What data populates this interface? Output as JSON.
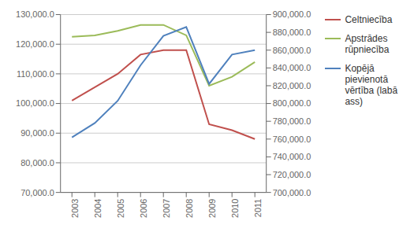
{
  "chart_data": {
    "type": "line",
    "x": [
      2003,
      2004,
      2005,
      2006,
      2007,
      2008,
      2009,
      2010,
      2011
    ],
    "xlim": [
      2002.5,
      2011.5
    ],
    "xticks": [
      2003,
      2004,
      2005,
      2006,
      2007,
      2008,
      2009,
      2010,
      2011
    ],
    "ylim": [
      70000,
      130000
    ],
    "yticks": [
      {
        "value": 70000,
        "label": "70,000.0"
      },
      {
        "value": 80000,
        "label": "80,000.0"
      },
      {
        "value": 90000,
        "label": "90,000.0"
      },
      {
        "value": 100000,
        "label": "100,000.0"
      },
      {
        "value": 110000,
        "label": "110,000.0"
      },
      {
        "value": 120000,
        "label": "120,000.0"
      },
      {
        "value": 130000,
        "label": "130,000.0"
      }
    ],
    "y2lim": [
      700000,
      900000
    ],
    "y2ticks": [
      {
        "value": 700000,
        "label": "700,000.0"
      },
      {
        "value": 720000,
        "label": "720,000.0"
      },
      {
        "value": 740000,
        "label": "740,000.0"
      },
      {
        "value": 760000,
        "label": "760,000.0"
      },
      {
        "value": 780000,
        "label": "780,000.0"
      },
      {
        "value": 800000,
        "label": "800,000.0"
      },
      {
        "value": 820000,
        "label": "820,000.0"
      },
      {
        "value": 840000,
        "label": "840,000.0"
      },
      {
        "value": 860000,
        "label": "860,000.0"
      },
      {
        "value": 880000,
        "label": "880,000.0"
      },
      {
        "value": 900000,
        "label": "900,000.0"
      }
    ],
    "grid": true,
    "legend": "right",
    "series": [
      {
        "name": "Celtniecība",
        "color": "#C0504D",
        "values": [
          101000,
          105500,
          110000,
          116500,
          118000,
          118000,
          93000,
          91000,
          88000
        ]
      },
      {
        "name": "Apstrādes\nrūpniecība",
        "color": "#9BBB59",
        "values": [
          122500,
          123000,
          124500,
          126500,
          126500,
          123000,
          106000,
          109000,
          114000
        ]
      },
      {
        "name": "Kopējā\npievienotā\nvērtība (labā\nass)",
        "color": "#4F81BD",
        "axis": "y2",
        "values": [
          762000,
          778000,
          803000,
          843000,
          876000,
          886000,
          822000,
          855000,
          860000
        ]
      }
    ]
  }
}
